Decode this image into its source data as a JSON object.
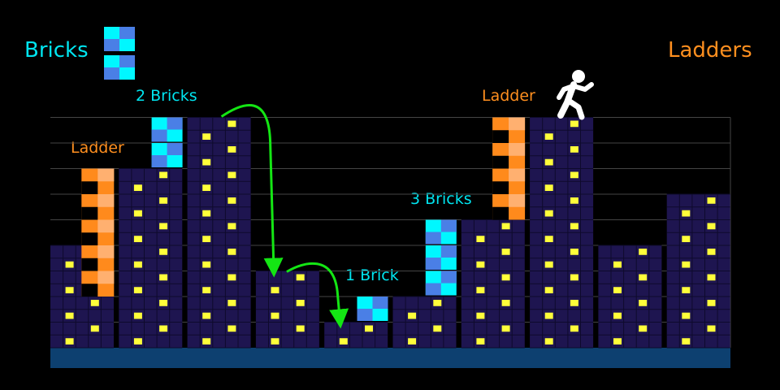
{
  "legend": {
    "bricks_title": "Bricks",
    "ladders_title": "Ladders"
  },
  "annotations": {
    "ladder_left": "Ladder",
    "two_bricks": "2 Bricks",
    "ladder_right": "Ladder",
    "three_bricks": "3 Bricks",
    "one_brick": "1 Brick"
  },
  "colors": {
    "background": "#000000",
    "building": "#1e1550",
    "building_edge": "#0e0a2c",
    "window": "#ffff3a",
    "brick_light": "#00f7ff",
    "brick_dark": "#4a7fe6",
    "ladder_dark": "#ff8a1c",
    "ladder_light": "#ffb070",
    "arrow": "#14e614",
    "ground": "#0d4070",
    "grid": "#444444",
    "label_cyan": "#00e5f0",
    "label_orange": "#ff8f1f"
  },
  "icons": {
    "runner": "running-person-icon",
    "brick": "brick-block-icon",
    "ladder": "ladder-segment-icon"
  },
  "buildings": [
    {
      "stories": 4
    },
    {
      "stories": 7
    },
    {
      "stories": 9
    },
    {
      "stories": 3
    },
    {
      "stories": 1
    },
    {
      "stories": 2
    },
    {
      "stories": 5
    },
    {
      "stories": 9
    },
    {
      "stories": 4
    },
    {
      "stories": 6
    }
  ],
  "brick_stacks": [
    {
      "column": 1,
      "count": 2,
      "label": "2 Bricks"
    },
    {
      "column": 4,
      "count": 1,
      "label": "1 Brick"
    },
    {
      "column": 5,
      "count": 3,
      "label": "3 Bricks"
    }
  ],
  "ladders": [
    {
      "column": 0,
      "count": 5,
      "label": "Ladder"
    },
    {
      "column": 6,
      "count": 4,
      "label": "Ladder"
    }
  ],
  "jumps": [
    {
      "from_column": 2,
      "to_column": 3
    },
    {
      "from_column": 3,
      "to_column": 4
    }
  ]
}
